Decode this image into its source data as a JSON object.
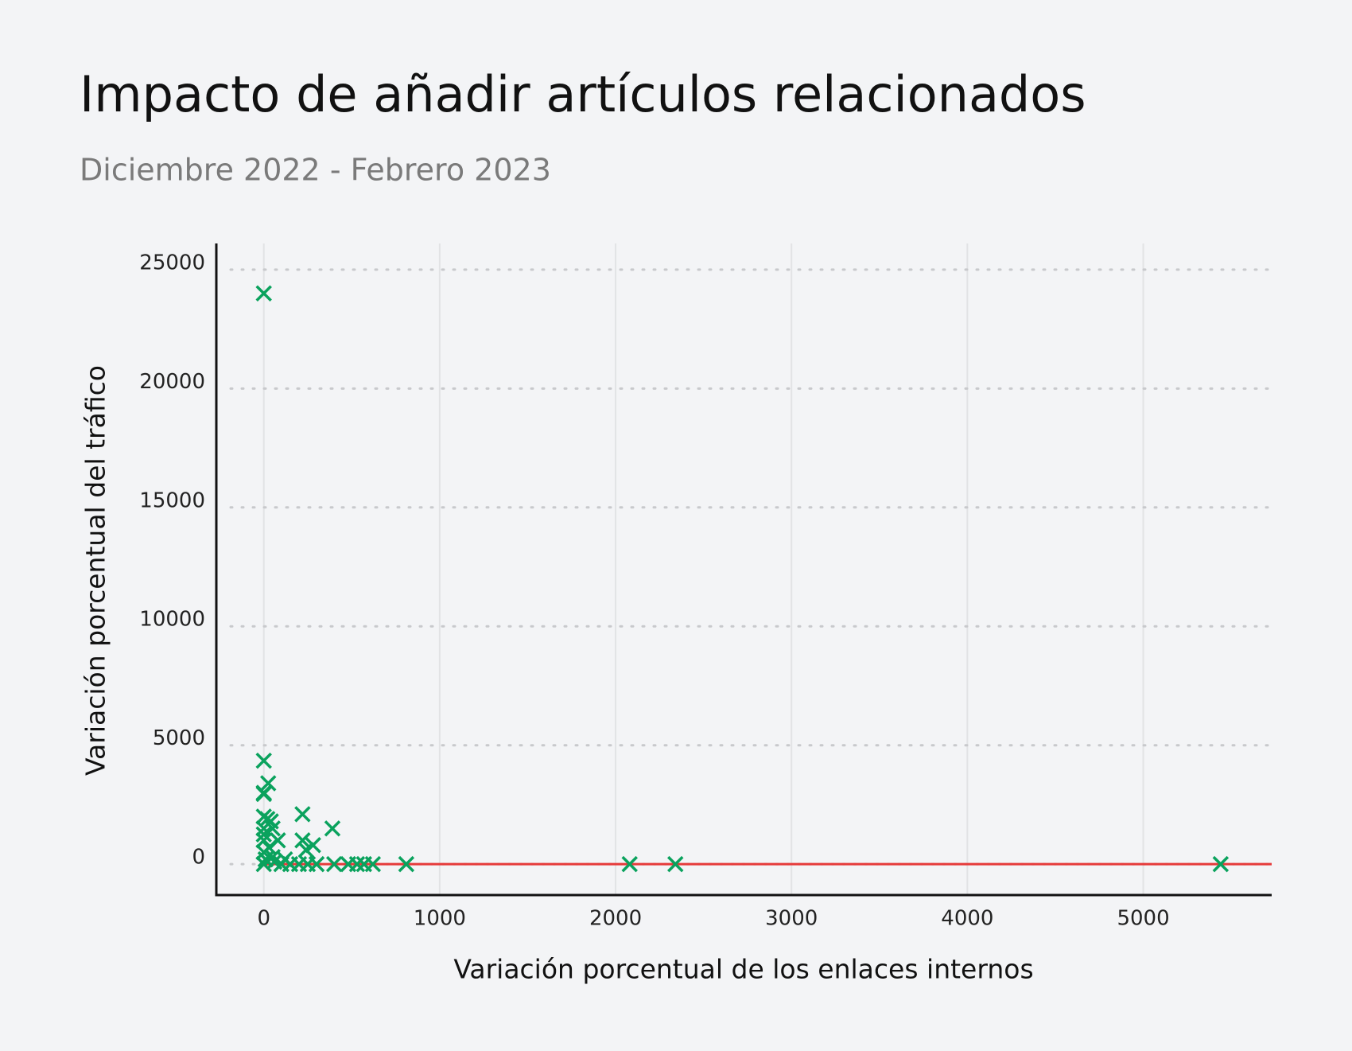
{
  "chart_data": {
    "type": "scatter",
    "title": "Impacto de añadir artículos relacionados",
    "subtitle": "Diciembre 2022 - Febrero 2023",
    "x_label": "Variación porcentual de los enlaces internos",
    "y_label": "Variación porcentual del tráfico",
    "x": [
      0,
      0,
      25,
      0,
      0,
      0,
      20,
      0,
      50,
      0,
      80,
      0,
      30,
      0,
      10,
      50,
      100,
      150,
      200,
      220,
      220,
      240,
      280,
      250,
      300,
      390,
      400,
      480,
      530,
      570,
      620,
      810,
      2080,
      2340,
      5440,
      60,
      120,
      0,
      40
    ],
    "values": [
      24000,
      4350,
      3400,
      3000,
      2950,
      2000,
      1900,
      1500,
      1500,
      1000,
      1000,
      500,
      700,
      0,
      200,
      300,
      0,
      0,
      0,
      2100,
      1000,
      600,
      800,
      0,
      0,
      1500,
      0,
      0,
      0,
      0,
      0,
      0,
      0,
      0,
      0,
      100,
      200,
      1250,
      1800
    ],
    "color": "#0aa25d",
    "reference_line": {
      "y": 0,
      "color": "#e63a3a"
    },
    "xlim": [
      -270,
      5730
    ],
    "xticks": [
      0,
      1000,
      2000,
      3000,
      4000,
      5000
    ],
    "ylim": [
      -1300,
      26100
    ],
    "yticks": [
      0,
      5000,
      10000,
      15000,
      20000,
      25000
    ],
    "grid": true
  }
}
